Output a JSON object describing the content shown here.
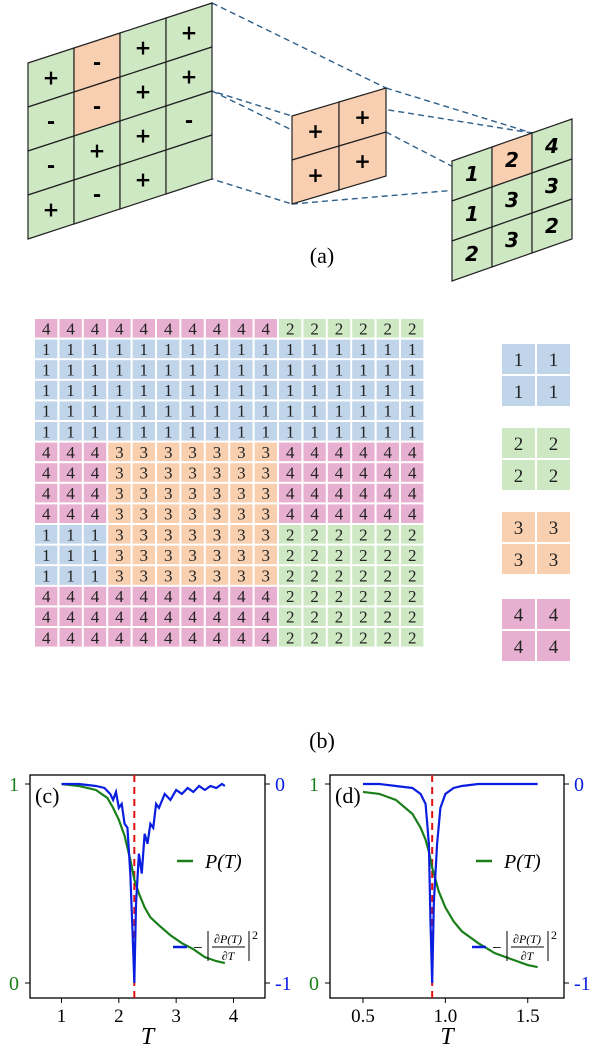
{
  "panel_a": {
    "label": "(a)",
    "input_grid": [
      [
        "+",
        "-",
        "+",
        "+"
      ],
      [
        "-",
        "-",
        "+",
        "+"
      ],
      [
        "-",
        "+",
        "+",
        "-"
      ],
      [
        "+",
        "-",
        "+",
        ""
      ]
    ],
    "input_orange": [
      [
        0,
        1
      ],
      [
        1,
        1
      ]
    ],
    "kernel": [
      [
        "+",
        "+"
      ],
      [
        "+",
        "+"
      ]
    ],
    "output": [
      [
        "1",
        "2",
        "4"
      ],
      [
        "1",
        "3",
        "3"
      ],
      [
        "2",
        "3",
        "2"
      ]
    ],
    "output_orange": [
      [
        0,
        1
      ]
    ],
    "colors": {
      "green": "#cfe8c4",
      "orange": "#f8cfb0",
      "dashed": "#2e5f8a"
    }
  },
  "panel_b": {
    "label": "(b)",
    "grid": [
      "4444444444222222",
      "1111111111111111",
      "1111111111111111",
      "1111111111111111",
      "1111111111111111",
      "1111111111111111",
      "4443333333444444",
      "4443333333444444",
      "4443333333444444",
      "4443333333444444",
      "1113333333222222",
      "1113333333222222",
      "1113333333222222",
      "4444444444222222",
      "4444444444222222",
      "4444444444222222"
    ],
    "legend_blocks": [
      "1",
      "2",
      "3",
      "4"
    ],
    "colors": {
      "1": "#c0d4ea",
      "2": "#cfe8c4",
      "3": "#f8d0b0",
      "4": "#e8b0d0"
    }
  },
  "chart_data": [
    {
      "type": "line",
      "label": "(c)",
      "xlabel": "T",
      "xlim": [
        0.45,
        4.55
      ],
      "xticks": [
        "1",
        "2",
        "3",
        "4"
      ],
      "xtick_values": [
        1,
        2,
        3,
        4
      ],
      "left_ticks": [
        "1",
        "0"
      ],
      "right_ticks": [
        "0",
        "-1"
      ],
      "critical_T": 2.27,
      "series": [
        {
          "name": "P(T)",
          "color": "#1a7f1a",
          "axis": "left",
          "x": [
            1.0,
            1.3,
            1.6,
            1.8,
            1.9,
            2.0,
            2.1,
            2.2,
            2.27,
            2.35,
            2.45,
            2.55,
            2.7,
            2.9,
            3.1,
            3.3,
            3.5,
            3.7,
            3.85
          ],
          "y": [
            1.0,
            0.99,
            0.97,
            0.93,
            0.88,
            0.82,
            0.74,
            0.62,
            0.52,
            0.45,
            0.38,
            0.33,
            0.29,
            0.24,
            0.2,
            0.17,
            0.13,
            0.11,
            0.1
          ]
        },
        {
          "name": "-|∂P(T)/∂T|²",
          "color": "#0a1ee0",
          "axis": "right",
          "x": [
            1.0,
            1.3,
            1.6,
            1.75,
            1.85,
            1.9,
            1.95,
            2.0,
            2.05,
            2.1,
            2.15,
            2.2,
            2.24,
            2.27,
            2.3,
            2.35,
            2.4,
            2.45,
            2.5,
            2.55,
            2.6,
            2.65,
            2.7,
            2.8,
            2.9,
            3.0,
            3.1,
            3.2,
            3.3,
            3.4,
            3.5,
            3.6,
            3.7,
            3.8,
            3.85
          ],
          "y": [
            0,
            0,
            -0.01,
            -0.02,
            -0.05,
            -0.08,
            -0.04,
            -0.12,
            -0.1,
            -0.2,
            -0.22,
            -0.45,
            -0.75,
            -1.0,
            -0.6,
            -0.35,
            -0.45,
            -0.25,
            -0.3,
            -0.2,
            -0.22,
            -0.1,
            -0.12,
            -0.05,
            -0.08,
            -0.03,
            -0.05,
            -0.02,
            -0.04,
            -0.01,
            -0.03,
            -0.01,
            -0.02,
            0.0,
            -0.01
          ]
        }
      ]
    },
    {
      "type": "line",
      "label": "(d)",
      "xlabel": "T",
      "xlim": [
        0.3,
        1.72
      ],
      "xticks": [
        "0.5",
        "1.0",
        "1.5"
      ],
      "xtick_values": [
        0.5,
        1.0,
        1.5
      ],
      "left_ticks": [
        "1",
        "0"
      ],
      "right_ticks": [
        "0",
        "-1"
      ],
      "critical_T": 0.92,
      "series": [
        {
          "name": "P(T)",
          "color": "#1a7f1a",
          "axis": "left",
          "x": [
            0.5,
            0.6,
            0.7,
            0.8,
            0.85,
            0.88,
            0.9,
            0.92,
            0.94,
            0.96,
            1.0,
            1.05,
            1.1,
            1.2,
            1.3,
            1.4,
            1.5,
            1.56
          ],
          "y": [
            0.96,
            0.95,
            0.92,
            0.85,
            0.78,
            0.72,
            0.66,
            0.58,
            0.52,
            0.46,
            0.38,
            0.31,
            0.26,
            0.2,
            0.15,
            0.12,
            0.09,
            0.08
          ]
        },
        {
          "name": "-|∂P(T)/∂T|²",
          "color": "#0a1ee0",
          "axis": "right",
          "x": [
            0.5,
            0.6,
            0.7,
            0.8,
            0.85,
            0.88,
            0.9,
            0.91,
            0.92,
            0.93,
            0.95,
            0.97,
            1.0,
            1.05,
            1.1,
            1.2,
            1.3,
            1.4,
            1.5,
            1.56
          ],
          "y": [
            0,
            0,
            -0.01,
            -0.02,
            -0.05,
            -0.1,
            -0.3,
            -0.7,
            -1.0,
            -0.6,
            -0.3,
            -0.12,
            -0.05,
            -0.02,
            -0.01,
            0,
            0,
            0,
            0,
            0
          ]
        }
      ]
    }
  ],
  "panel_c_label": "(c)",
  "panel_d_label": "(d)",
  "legend_p": "P(T)",
  "axis_T": "T"
}
